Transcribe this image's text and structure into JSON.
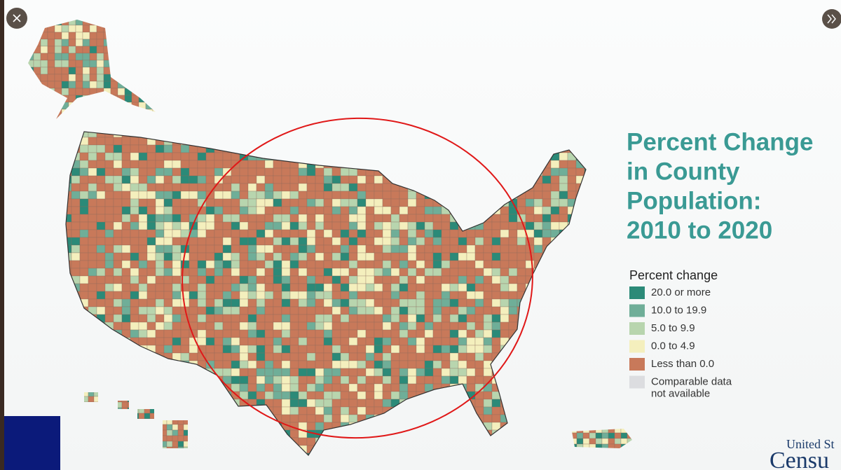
{
  "title_lines": [
    "Percent Change",
    "in County",
    "Population:",
    "2010 to 2020"
  ],
  "legend": {
    "title": "Percent change",
    "items": [
      {
        "label": "20.0 or more",
        "color": "#2b8a78"
      },
      {
        "label": "10.0 to 19.9",
        "color": "#6fae98"
      },
      {
        "label": "5.0 to 9.9",
        "color": "#b8d5ae"
      },
      {
        "label": "0.0 to 4.9",
        "color": "#f4efbd"
      },
      {
        "label": "Less than 0.0",
        "color": "#c8795a"
      },
      {
        "label": "Comparable data not available",
        "color": "#dcdde0"
      }
    ]
  },
  "branding": [
    "United St",
    "Censu"
  ]
}
